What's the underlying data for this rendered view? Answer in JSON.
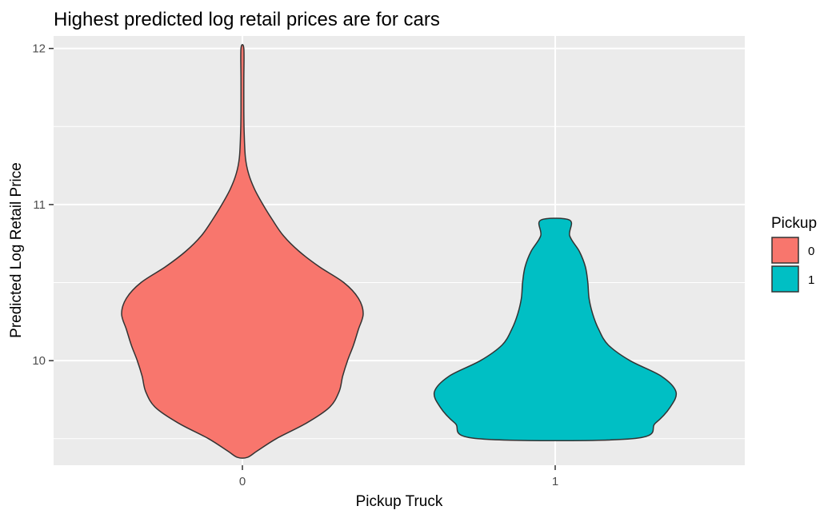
{
  "chart_data": {
    "type": "violin",
    "title": "Highest predicted log retail prices are for cars",
    "xlabel": "Pickup Truck",
    "ylabel": "Predicted Log Retail Price",
    "ylim": [
      9.33,
      12.08
    ],
    "yticks": [
      10,
      11,
      12
    ],
    "y_minor_gridlines": [
      9.5,
      10.5,
      11.5
    ],
    "grid": true,
    "categories": [
      "0",
      "1"
    ],
    "legend": {
      "title": "Pickup",
      "position": "right",
      "entries": [
        {
          "label": "0",
          "color": "#F8766D"
        },
        {
          "label": "1",
          "color": "#00BFC4"
        }
      ]
    },
    "series": [
      {
        "category": "0",
        "color": "#F8766D",
        "density_profile": [
          [
            9.38,
            0.04
          ],
          [
            9.42,
            0.12
          ],
          [
            9.5,
            0.28
          ],
          [
            9.6,
            0.53
          ],
          [
            9.7,
            0.72
          ],
          [
            9.8,
            0.8
          ],
          [
            9.9,
            0.83
          ],
          [
            10.0,
            0.87
          ],
          [
            10.1,
            0.92
          ],
          [
            10.2,
            0.96
          ],
          [
            10.3,
            1.0
          ],
          [
            10.4,
            0.96
          ],
          [
            10.5,
            0.84
          ],
          [
            10.6,
            0.64
          ],
          [
            10.7,
            0.47
          ],
          [
            10.8,
            0.34
          ],
          [
            10.9,
            0.25
          ],
          [
            11.0,
            0.17
          ],
          [
            11.1,
            0.1
          ],
          [
            11.2,
            0.05
          ],
          [
            11.3,
            0.025
          ],
          [
            11.45,
            0.015
          ],
          [
            11.6,
            0.012
          ],
          [
            11.8,
            0.012
          ],
          [
            12.0,
            0.012
          ]
        ]
      },
      {
        "category": "1",
        "color": "#00BFC4",
        "density_profile": [
          [
            9.5,
            0.64
          ],
          [
            9.6,
            0.83
          ],
          [
            9.7,
            0.95
          ],
          [
            9.8,
            1.0
          ],
          [
            9.9,
            0.88
          ],
          [
            10.0,
            0.62
          ],
          [
            10.1,
            0.44
          ],
          [
            10.2,
            0.36
          ],
          [
            10.3,
            0.31
          ],
          [
            10.4,
            0.28
          ],
          [
            10.5,
            0.27
          ],
          [
            10.6,
            0.25
          ],
          [
            10.7,
            0.2
          ],
          [
            10.8,
            0.12
          ],
          [
            10.9,
            0.12
          ]
        ]
      }
    ]
  }
}
